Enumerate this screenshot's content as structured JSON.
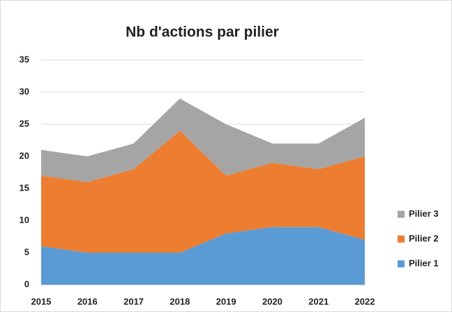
{
  "chart_data": {
    "type": "stacked_area",
    "title": "Nb d'actions par pilier",
    "categories": [
      "2015",
      "2016",
      "2017",
      "2018",
      "2019",
      "2020",
      "2021",
      "2022"
    ],
    "series": [
      {
        "name": "Pilier 1",
        "color": "#5b9bd5",
        "values": [
          6,
          5,
          5,
          5,
          8,
          9,
          9,
          7
        ]
      },
      {
        "name": "Pilier 2",
        "color": "#ed7d31",
        "values": [
          11,
          11,
          13,
          19,
          9,
          10,
          9,
          13
        ]
      },
      {
        "name": "Pilier 3",
        "color": "#a5a5a5",
        "values": [
          4,
          4,
          4,
          5,
          8,
          3,
          4,
          6
        ]
      }
    ],
    "ylim": [
      0,
      35
    ],
    "yticks": [
      0,
      5,
      10,
      15,
      20,
      25,
      30,
      35
    ],
    "grid": true,
    "legend": "right"
  }
}
